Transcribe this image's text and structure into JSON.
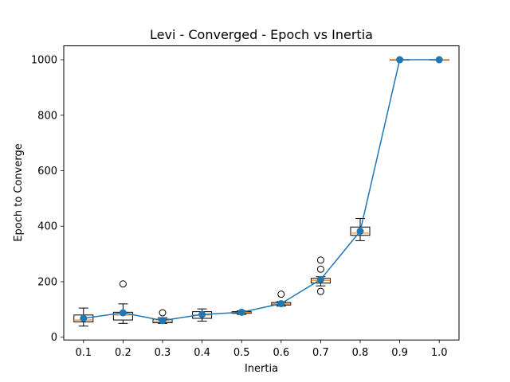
{
  "chart_data": {
    "type": "box",
    "title": "Levi - Converged - Epoch vs Inertia",
    "xlabel": "Inertia",
    "ylabel": "Epoch to Converge",
    "categories": [
      "0.1",
      "0.2",
      "0.3",
      "0.4",
      "0.5",
      "0.6",
      "0.7",
      "0.8",
      "0.9",
      "1.0"
    ],
    "ylim": [
      -10,
      1050
    ],
    "yticks": [
      0,
      200,
      400,
      600,
      800,
      1000
    ],
    "grid": false,
    "legend": "none",
    "boxes": [
      {
        "whislo": 40,
        "q1": 55,
        "med": 62,
        "q3": 80,
        "whishi": 105,
        "fliers": []
      },
      {
        "whislo": 50,
        "q1": 62,
        "med": 80,
        "q3": 90,
        "whishi": 120,
        "fliers": [
          192
        ]
      },
      {
        "whislo": 50,
        "q1": 52,
        "med": 58,
        "q3": 65,
        "whishi": 70,
        "fliers": [
          88
        ]
      },
      {
        "whislo": 58,
        "q1": 68,
        "med": 80,
        "q3": 92,
        "whishi": 102,
        "fliers": []
      },
      {
        "whislo": 82,
        "q1": 86,
        "med": 89,
        "q3": 92,
        "whishi": 95,
        "fliers": []
      },
      {
        "whislo": 112,
        "q1": 116,
        "med": 120,
        "q3": 125,
        "whishi": 128,
        "fliers": [
          155
        ]
      },
      {
        "whislo": 185,
        "q1": 195,
        "med": 205,
        "q3": 212,
        "whishi": 218,
        "fliers": [
          278,
          245,
          165
        ]
      },
      {
        "whislo": 348,
        "q1": 367,
        "med": 375,
        "q3": 397,
        "whishi": 428,
        "fliers": []
      },
      {
        "whislo": 1000,
        "q1": 1000,
        "med": 1000,
        "q3": 1000,
        "whishi": 1000,
        "fliers": []
      },
      {
        "whislo": 1000,
        "q1": 1000,
        "med": 1000,
        "q3": 1000,
        "whishi": 1000,
        "fliers": []
      }
    ],
    "series": [
      {
        "values": [
          68,
          88,
          60,
          82,
          90,
          121,
          208,
          382,
          1000,
          1000
        ]
      }
    ],
    "colors": {
      "line": "#1f77b4",
      "marker": "#1f77b4",
      "median": "#ff7f0e",
      "box": "#000000",
      "flier": "#000000"
    }
  }
}
